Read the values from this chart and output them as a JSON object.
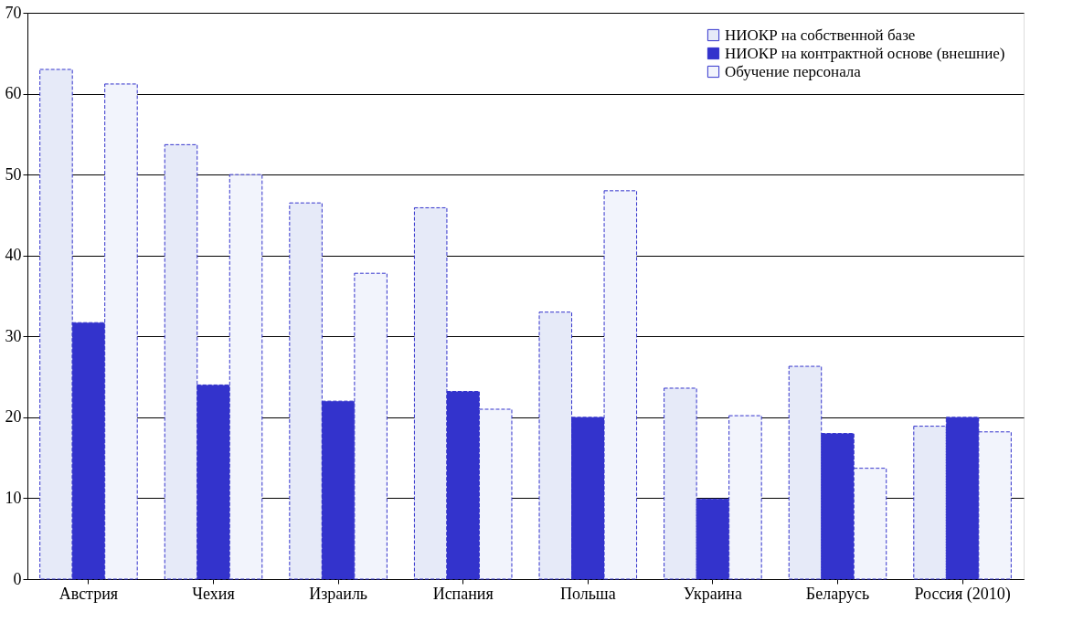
{
  "chart_data": {
    "type": "bar",
    "categories": [
      "Австрия",
      "Чехия",
      "Израиль",
      "Испания",
      "Польша",
      "Украина",
      "Беларусь",
      "Россия (2010)"
    ],
    "series": [
      {
        "name": "НИОКР  на собственной базе",
        "color": "#e6eaf8",
        "values": [
          63,
          53.7,
          46.5,
          45.9,
          33,
          23.6,
          26.3,
          18.9
        ]
      },
      {
        "name": "НИОКР  на контрактной основе (внешние)",
        "color": "#3333cc",
        "values": [
          31.7,
          24,
          22,
          23.2,
          20,
          9.9,
          18,
          20
        ]
      },
      {
        "name": "Обучение персонала",
        "color": "#f2f4fc",
        "values": [
          61.2,
          50,
          37.8,
          21,
          48,
          20.2,
          13.7,
          18.2
        ]
      }
    ],
    "ylim": [
      0,
      70
    ],
    "yticks": [
      0,
      10,
      20,
      30,
      40,
      50,
      60,
      70
    ],
    "grid": "y",
    "legend": "top right"
  }
}
